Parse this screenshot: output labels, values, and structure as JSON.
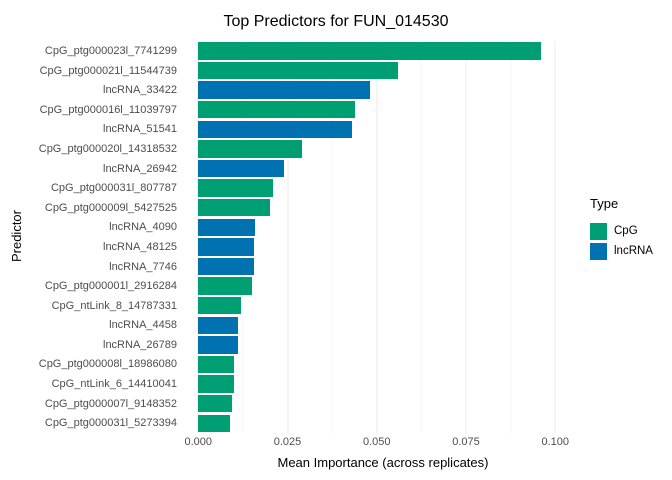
{
  "chart_data": {
    "type": "bar",
    "orientation": "horizontal",
    "title": "Top Predictors for FUN_014530",
    "xlabel": "Mean Importance (across replicates)",
    "ylabel": "Predictor",
    "grid": true,
    "legend_position": "right",
    "x_range": [
      -0.004,
      0.1075
    ],
    "x_ticks": [
      {
        "value": 0.0,
        "label": "0.000"
      },
      {
        "value": 0.025,
        "label": "0.025"
      },
      {
        "value": 0.05,
        "label": "0.050"
      },
      {
        "value": 0.075,
        "label": "0.075"
      },
      {
        "value": 0.1,
        "label": "0.100"
      }
    ],
    "x_minor_ticks": [
      0.0125,
      0.0375,
      0.0625,
      0.0875
    ],
    "colors": {
      "CpG": "#009E73",
      "lncRNA": "#0072B2"
    },
    "legend": {
      "title": "Type",
      "entries": [
        {
          "label": "CpG",
          "color": "#009E73"
        },
        {
          "label": "lncRNA",
          "color": "#0072B2"
        }
      ]
    },
    "bars": [
      {
        "label": "CpG_ptg000023l_7741299",
        "type": "CpG",
        "value": 0.096
      },
      {
        "label": "CpG_ptg000021l_11544739",
        "type": "CpG",
        "value": 0.056
      },
      {
        "label": "lncRNA_33422",
        "type": "lncRNA",
        "value": 0.048
      },
      {
        "label": "CpG_ptg000016l_11039797",
        "type": "CpG",
        "value": 0.044
      },
      {
        "label": "lncRNA_51541",
        "type": "lncRNA",
        "value": 0.043
      },
      {
        "label": "CpG_ptg000020l_14318532",
        "type": "CpG",
        "value": 0.029
      },
      {
        "label": "lncRNA_26942",
        "type": "lncRNA",
        "value": 0.024
      },
      {
        "label": "CpG_ptg000031l_807787",
        "type": "CpG",
        "value": 0.021
      },
      {
        "label": "CpG_ptg000009l_5427525",
        "type": "CpG",
        "value": 0.02
      },
      {
        "label": "lncRNA_4090",
        "type": "lncRNA",
        "value": 0.016
      },
      {
        "label": "lncRNA_48125",
        "type": "lncRNA",
        "value": 0.0155
      },
      {
        "label": "lncRNA_7746",
        "type": "lncRNA",
        "value": 0.0155
      },
      {
        "label": "CpG_ptg000001l_2916284",
        "type": "CpG",
        "value": 0.015
      },
      {
        "label": "CpG_ntLink_8_14787331",
        "type": "CpG",
        "value": 0.012
      },
      {
        "label": "lncRNA_4458",
        "type": "lncRNA",
        "value": 0.011
      },
      {
        "label": "lncRNA_26789",
        "type": "lncRNA",
        "value": 0.011
      },
      {
        "label": "CpG_ptg000008l_18986080",
        "type": "CpG",
        "value": 0.01
      },
      {
        "label": "CpG_ntLink_6_14410041",
        "type": "CpG",
        "value": 0.01
      },
      {
        "label": "CpG_ptg000007l_9148352",
        "type": "CpG",
        "value": 0.0095
      },
      {
        "label": "CpG_ptg000031l_5273394",
        "type": "CpG",
        "value": 0.009
      }
    ]
  }
}
